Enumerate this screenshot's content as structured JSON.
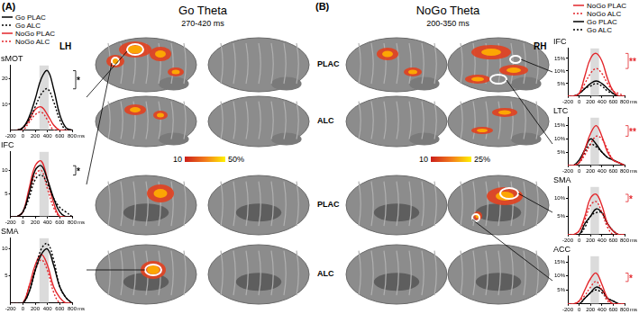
{
  "figure": {
    "panels": [
      {
        "label": "(A)",
        "title": "Go Theta",
        "subtitle": "270-420 ms",
        "hemisphere": "LH",
        "colorbar": {
          "range": [
            10,
            50
          ],
          "ticks": [
            10,
            {
              "value": 50,
              "label": "50%"
            }
          ]
        }
      },
      {
        "label": "(B)",
        "title": "NoGo Theta",
        "subtitle": "200-350 ms",
        "hemisphere": "RH",
        "row_labels": [
          "PLAC",
          "ALC",
          "PLAC",
          "ALC"
        ],
        "colorbar": {
          "range": [
            10,
            25
          ],
          "ticks": [
            10,
            {
              "value": 25,
              "label": "25%"
            }
          ]
        }
      }
    ]
  },
  "chart_data": [
    {
      "type": "line",
      "title": "sMOT",
      "x": [
        -200,
        -100,
        0,
        100,
        200,
        300,
        400,
        500,
        600,
        700,
        800
      ],
      "xlim": [
        -200,
        800
      ],
      "xticks": [
        -200,
        0,
        200,
        400,
        600,
        800
      ],
      "x_label": "ms",
      "ylim": [
        0,
        25
      ],
      "yticks": [
        10,
        20
      ],
      "shaded_window": [
        270,
        420
      ],
      "annotation": {
        "text": "*",
        "color": "#000000"
      },
      "series": [
        {
          "name": "Go PLAC",
          "color": "#000000",
          "line_style": "solid",
          "values": [
            0,
            0,
            1,
            5,
            12,
            20,
            23,
            16,
            6,
            1,
            0
          ]
        },
        {
          "name": "Go ALC",
          "color": "#000000",
          "line_style": "dotted",
          "values": [
            0,
            0,
            1,
            4,
            9,
            14,
            16,
            11,
            4,
            0,
            0
          ]
        },
        {
          "name": "NoGo PLAC",
          "color": "#e3262b",
          "line_style": "solid",
          "values": [
            0,
            0,
            1,
            4,
            8,
            9,
            6,
            2,
            0,
            0,
            0
          ]
        },
        {
          "name": "NoGo ALC",
          "color": "#e3262b",
          "line_style": "dotted",
          "values": [
            0,
            0,
            0,
            3,
            6,
            7,
            4,
            0,
            0,
            0,
            0
          ]
        }
      ]
    },
    {
      "type": "line",
      "title": "IFC",
      "x": [
        -200,
        -100,
        0,
        100,
        200,
        300,
        400,
        500,
        600,
        700,
        800
      ],
      "xlim": [
        -200,
        800
      ],
      "xticks": [
        -200,
        0,
        200,
        400,
        600,
        800
      ],
      "x_label": "ms",
      "ylim": [
        0,
        14
      ],
      "yticks": [
        5,
        10
      ],
      "shaded_window": [
        270,
        420
      ],
      "annotation": {
        "text": "*",
        "color": "#000000"
      },
      "series": [
        {
          "name": "Go PLAC",
          "color": "#000000",
          "line_style": "solid",
          "values": [
            0,
            0,
            1,
            5,
            10,
            11,
            8,
            4,
            1,
            0,
            0
          ]
        },
        {
          "name": "Go ALC",
          "color": "#000000",
          "line_style": "dotted",
          "values": [
            0,
            0,
            1,
            4,
            8,
            9,
            7,
            4,
            2,
            1,
            0
          ]
        },
        {
          "name": "NoGo PLAC",
          "color": "#e3262b",
          "line_style": "solid",
          "values": [
            0,
            0,
            1,
            6,
            11,
            12,
            8,
            3,
            0,
            0,
            0
          ]
        },
        {
          "name": "NoGo ALC",
          "color": "#e3262b",
          "line_style": "dotted",
          "values": [
            0,
            0,
            1,
            5,
            9,
            10,
            6,
            2,
            0,
            0,
            0
          ]
        }
      ]
    },
    {
      "type": "line",
      "title": "SMA",
      "x": [
        -200,
        -100,
        0,
        100,
        200,
        300,
        400,
        500,
        600,
        700,
        800
      ],
      "xlim": [
        -200,
        800
      ],
      "xticks": [
        -200,
        0,
        200,
        400,
        600,
        800
      ],
      "x_label": "ms",
      "ylim": [
        0,
        12
      ],
      "yticks": [
        5,
        10
      ],
      "shaded_window": [
        270,
        420
      ],
      "series": [
        {
          "name": "Go PLAC",
          "color": "#000000",
          "line_style": "solid",
          "values": [
            0,
            0,
            0,
            2,
            6,
            9,
            10,
            7,
            3,
            1,
            0
          ]
        },
        {
          "name": "Go ALC",
          "color": "#000000",
          "line_style": "dotted",
          "values": [
            0,
            0,
            0,
            2,
            6,
            10,
            11,
            8,
            3,
            1,
            0
          ]
        },
        {
          "name": "NoGo PLAC",
          "color": "#e3262b",
          "line_style": "solid",
          "values": [
            0,
            0,
            0,
            3,
            7,
            9,
            7,
            3,
            1,
            0,
            0
          ]
        },
        {
          "name": "NoGo ALC",
          "color": "#e3262b",
          "line_style": "dotted",
          "values": [
            0,
            0,
            0,
            3,
            6,
            8,
            6,
            2,
            0,
            0,
            0
          ]
        }
      ]
    },
    {
      "type": "line",
      "title": "IFC",
      "x": [
        -200,
        -100,
        0,
        100,
        200,
        300,
        400,
        500,
        600,
        700,
        800
      ],
      "xlim": [
        -200,
        800
      ],
      "xticks": [
        -200,
        0,
        200,
        400,
        600,
        800
      ],
      "x_label": "ms",
      "ylim": [
        0,
        19
      ],
      "yticks": [
        {
          "value": 5,
          "label": "5%"
        },
        {
          "value": 10,
          "label": "10%"
        },
        {
          "value": 15,
          "label": "15%"
        }
      ],
      "shaded_window": [
        200,
        350
      ],
      "annotation": {
        "text": "**",
        "color": "#e3262b"
      },
      "series": [
        {
          "name": "NoGo PLAC",
          "color": "#e3262b",
          "line_style": "solid",
          "values": [
            0,
            0,
            1,
            8,
            15,
            17,
            14,
            7,
            2,
            0,
            0
          ]
        },
        {
          "name": "NoGo ALC",
          "color": "#e3262b",
          "line_style": "dotted",
          "values": [
            0,
            0,
            1,
            5,
            9,
            11,
            9,
            5,
            2,
            1,
            0
          ]
        },
        {
          "name": "Go PLAC",
          "color": "#000000",
          "line_style": "solid",
          "values": [
            0,
            0,
            1,
            3,
            5,
            6,
            5,
            3,
            1,
            0,
            0
          ]
        },
        {
          "name": "Go ALC",
          "color": "#000000",
          "line_style": "dotted",
          "values": [
            0,
            0,
            1,
            3,
            4,
            5,
            4,
            2,
            1,
            0,
            0
          ]
        }
      ]
    },
    {
      "type": "line",
      "title": "LTC",
      "x": [
        -200,
        -100,
        0,
        100,
        200,
        300,
        400,
        500,
        600,
        700,
        800
      ],
      "xlim": [
        -200,
        800
      ],
      "xticks": [
        -200,
        0,
        200,
        400,
        600,
        800
      ],
      "x_label": "ms",
      "ylim": [
        0,
        18
      ],
      "yticks": [
        {
          "value": 5,
          "label": "5%"
        },
        {
          "value": 10,
          "label": "10%"
        },
        {
          "value": 15,
          "label": "15%"
        }
      ],
      "shaded_window": [
        200,
        350
      ],
      "annotation": {
        "text": "**",
        "color": "#e3262b"
      },
      "series": [
        {
          "name": "NoGo PLAC",
          "color": "#e3262b",
          "line_style": "solid",
          "values": [
            0,
            0,
            1,
            6,
            12,
            15,
            11,
            5,
            2,
            1,
            0
          ]
        },
        {
          "name": "NoGo ALC",
          "color": "#e3262b",
          "line_style": "dotted",
          "values": [
            0,
            0,
            1,
            4,
            8,
            11,
            10,
            6,
            2,
            1,
            0
          ]
        },
        {
          "name": "Go PLAC",
          "color": "#000000",
          "line_style": "solid",
          "values": [
            0,
            0,
            2,
            6,
            10,
            8,
            5,
            3,
            2,
            1,
            0
          ]
        },
        {
          "name": "Go ALC",
          "color": "#000000",
          "line_style": "dotted",
          "values": [
            0,
            0,
            1,
            5,
            8,
            7,
            5,
            3,
            2,
            1,
            0
          ]
        }
      ]
    },
    {
      "type": "line",
      "title": "SMA",
      "x": [
        -200,
        -100,
        0,
        100,
        200,
        300,
        400,
        500,
        600,
        700,
        800
      ],
      "xlim": [
        -200,
        800
      ],
      "xticks": [
        -200,
        0,
        200,
        400,
        600,
        800
      ],
      "x_label": "ms",
      "ylim": [
        0,
        13
      ],
      "yticks": [
        {
          "value": 5,
          "label": "5%"
        },
        {
          "value": 10,
          "label": "10%"
        }
      ],
      "shaded_window": [
        200,
        350
      ],
      "annotation": {
        "text": "*",
        "color": "#e3262b"
      },
      "series": [
        {
          "name": "NoGo PLAC",
          "color": "#e3262b",
          "line_style": "solid",
          "values": [
            0,
            0,
            1,
            5,
            10,
            11,
            8,
            3,
            1,
            0,
            0
          ]
        },
        {
          "name": "NoGo ALC",
          "color": "#e3262b",
          "line_style": "dotted",
          "values": [
            0,
            0,
            1,
            4,
            8,
            9,
            6,
            2,
            0,
            0,
            0
          ]
        },
        {
          "name": "Go PLAC",
          "color": "#000000",
          "line_style": "solid",
          "values": [
            0,
            0,
            0,
            3,
            5,
            7,
            6,
            3,
            1,
            0,
            0
          ]
        },
        {
          "name": "Go ALC",
          "color": "#000000",
          "line_style": "dotted",
          "values": [
            0,
            0,
            0,
            2,
            5,
            6,
            6,
            3,
            1,
            0,
            0
          ]
        }
      ]
    },
    {
      "type": "line",
      "title": "ACC",
      "x": [
        -200,
        -100,
        0,
        100,
        200,
        300,
        400,
        500,
        600,
        700,
        800
      ],
      "xlim": [
        -200,
        800
      ],
      "xticks": [
        -200,
        0,
        200,
        400,
        600,
        800
      ],
      "x_label": "ms",
      "ylim": [
        0,
        17
      ],
      "yticks": [
        {
          "value": 5,
          "label": "5%"
        },
        {
          "value": 10,
          "label": "10%"
        },
        {
          "value": 15,
          "label": "15%"
        }
      ],
      "shaded_window": [
        200,
        350
      ],
      "annotation": {
        "text": "*",
        "color": "#e3262b"
      },
      "series": [
        {
          "name": "NoGo PLAC",
          "color": "#e3262b",
          "line_style": "solid",
          "values": [
            0,
            0,
            1,
            5,
            9,
            11,
            7,
            2,
            0,
            0,
            0
          ]
        },
        {
          "name": "NoGo ALC",
          "color": "#e3262b",
          "line_style": "dotted",
          "values": [
            0,
            0,
            1,
            3,
            6,
            8,
            5,
            1,
            0,
            0,
            0
          ]
        },
        {
          "name": "Go PLAC",
          "color": "#000000",
          "line_style": "solid",
          "values": [
            0,
            0,
            0,
            2,
            4,
            6,
            5,
            2,
            1,
            0,
            0
          ]
        },
        {
          "name": "Go ALC",
          "color": "#000000",
          "line_style": "dotted",
          "values": [
            0,
            0,
            0,
            2,
            4,
            5,
            4,
            2,
            1,
            0,
            0
          ]
        }
      ]
    }
  ]
}
